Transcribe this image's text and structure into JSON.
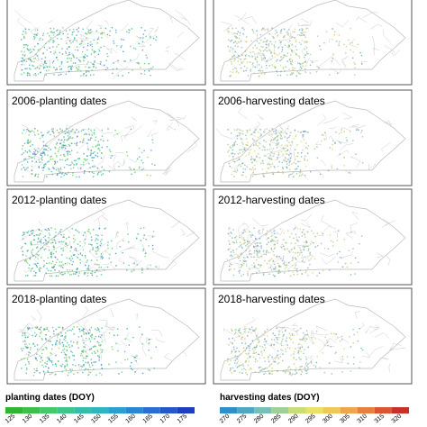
{
  "panels": [
    {
      "title": "2006-planting dates"
    },
    {
      "title": "2006-harvesting dates"
    },
    {
      "title": "2012-planting dates"
    },
    {
      "title": "2012-harvesting dates"
    },
    {
      "title": "2018-planting dates"
    },
    {
      "title": "2018-harvesting dates"
    }
  ],
  "legends": [
    {
      "title": "planting dates (DOY)",
      "ticks": [
        125,
        130,
        135,
        140,
        145,
        150,
        155,
        160,
        165,
        170,
        175
      ]
    },
    {
      "title": "harvesting dates (DOY)",
      "ticks": [
        270,
        275,
        280,
        285,
        290,
        295,
        300,
        305,
        310,
        315,
        320
      ]
    }
  ]
}
